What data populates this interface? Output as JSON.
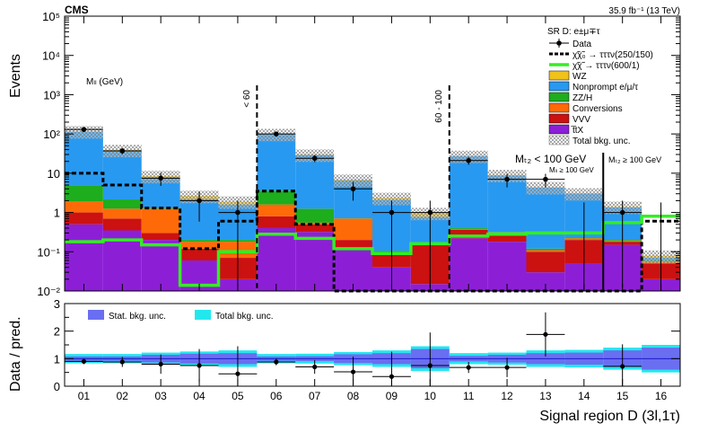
{
  "header": {
    "cms": "CMS",
    "lumi": "35.9 fb⁻¹ (13 TeV)"
  },
  "upper": {
    "ylabel": "Events",
    "tick_labels": [
      "10⁻²",
      "10⁻¹",
      "1",
      "10",
      "10²",
      "10³",
      "10⁴",
      "10⁵"
    ],
    "annotations": {
      "mll": "Mₗₗ (GeV)",
      "lt60": "< 60",
      "range60": "60 - 100",
      "mt2_low": "Mₜ₂ < 100 GeV",
      "mt2_low_sub": "Mₗₗ ≥ 100 GeV",
      "mt2_high": "Mₜ₂ ≥ 100 GeV"
    },
    "legend": {
      "title": "SR D: e±μ∓τ",
      "entries": [
        {
          "key": "data",
          "label": "Data"
        },
        {
          "key": "sig1",
          "label": "χ̃χ̃₀ → τττν(250/150)"
        },
        {
          "key": "sig2",
          "label": "χ̃χ̃ → τττν(600/1)"
        },
        {
          "key": "wz",
          "label": "WZ"
        },
        {
          "key": "np",
          "label": "Nonprompt e/μ/τ"
        },
        {
          "key": "zzh",
          "label": "ZZ/H"
        },
        {
          "key": "conv",
          "label": "Conversions"
        },
        {
          "key": "vvv",
          "label": "VVV"
        },
        {
          "key": "ttx",
          "label": "t̅tX"
        },
        {
          "key": "unc",
          "label": "Total bkg. unc."
        }
      ]
    }
  },
  "lower": {
    "ylabel": "Data / pred.",
    "tick_labels": [
      "0",
      "1",
      "2",
      "3"
    ],
    "legend": {
      "stat": "Stat. bkg. unc.",
      "total": "Total bkg. unc."
    }
  },
  "chart_data": {
    "type": "bar",
    "title": "CMS",
    "xlabel": "Signal region D (3l,1τ)",
    "ylabel": "Events",
    "yscale": "log",
    "ylim": [
      0.01,
      100000
    ],
    "categories": [
      "01",
      "02",
      "03",
      "04",
      "05",
      "06",
      "07",
      "08",
      "09",
      "10",
      "11",
      "12",
      "13",
      "14",
      "15",
      "16"
    ],
    "colors": {
      "ttx": "#8c1fd6",
      "vvv": "#cc1111",
      "conv": "#ff6a08",
      "zzh": "#1dad1d",
      "np": "#2899f0",
      "wz": "#f0c21c",
      "sig2": "#33ee22",
      "sig1": "#000000",
      "stat_band": "#6a6ef0",
      "total_band": "#22e8ee"
    },
    "series": [
      {
        "name": "t̅tX",
        "key": "ttx",
        "values": [
          0.5,
          0.35,
          0.2,
          0.06,
          0.02,
          0.4,
          0.32,
          0.11,
          0.04,
          0.015,
          0.22,
          0.18,
          0.03,
          0.05,
          0.15,
          0.02
        ]
      },
      {
        "name": "VVV",
        "key": "vvv",
        "values": [
          0.5,
          0.35,
          0.1,
          0.06,
          0.05,
          0.4,
          0.18,
          0.09,
          0.045,
          0.14,
          0.14,
          0.12,
          0.07,
          0.15,
          0.03,
          0.03
        ]
      },
      {
        "name": "Conversions",
        "key": "conv",
        "values": [
          0.9,
          0.55,
          0.95,
          0.06,
          0.11,
          0.8,
          0.05,
          0.5,
          0.01,
          0.01,
          0.02,
          0.01,
          0.01,
          0.02,
          0.01,
          0.005
        ]
      },
      {
        "name": "ZZ/H",
        "key": "zzh",
        "values": [
          3,
          0.9,
          0.05,
          0.02,
          0.02,
          2,
          0.7,
          0.01,
          0.01,
          0.01,
          0.02,
          0.01,
          0.01,
          0.01,
          0.01,
          0.005
        ]
      },
      {
        "name": "Nonprompt e/μ/τ",
        "key": "np",
        "values": [
          110,
          36,
          6.5,
          2.0,
          1.4,
          95,
          28,
          5.8,
          2.0,
          0.6,
          27,
          8.5,
          4.2,
          2.8,
          1.15,
          0.01
        ]
      },
      {
        "name": "WZ",
        "key": "wz",
        "values": [
          2,
          1,
          0.7,
          0.45,
          0.3,
          1.5,
          0.6,
          0.35,
          0.25,
          0.2,
          0.3,
          0.2,
          0.1,
          0.05,
          0.05,
          0.01
        ]
      }
    ],
    "total_bkg_unc_rel": 0.35,
    "signals": [
      {
        "name": "χ̃χ̃₀ → τττν(250/150)",
        "key": "sig1",
        "style": "dashed",
        "values": [
          10,
          5,
          1.3,
          0.12,
          0.6,
          3.5,
          0.5,
          0.01,
          0.01,
          0.01,
          0.01,
          0.01,
          0.01,
          0.01,
          0.01,
          0.6
        ]
      },
      {
        "name": "χ̃χ̃ → τττν(600/1)",
        "key": "sig2",
        "style": "solid",
        "values": [
          0.18,
          0.2,
          0.15,
          0.014,
          0.1,
          0.28,
          0.22,
          0.12,
          0.09,
          0.16,
          0.25,
          0.28,
          0.3,
          0.3,
          0.55,
          0.8
        ]
      }
    ],
    "data": [
      {
        "x": "01",
        "y": 130
      },
      {
        "x": "02",
        "y": 37
      },
      {
        "x": "03",
        "y": 7.5
      },
      {
        "x": "04",
        "y": 2
      },
      {
        "x": "05",
        "y": 1
      },
      {
        "x": "06",
        "y": 100
      },
      {
        "x": "07",
        "y": 24
      },
      {
        "x": "08",
        "y": 4
      },
      {
        "x": "09",
        "y": 1
      },
      {
        "x": "10",
        "y": 1
      },
      {
        "x": "11",
        "y": 21
      },
      {
        "x": "12",
        "y": 7
      },
      {
        "x": "13",
        "y": 7
      },
      {
        "x": "14",
        "y": 0
      },
      {
        "x": "15",
        "y": 1
      },
      {
        "x": "16",
        "y": 0
      }
    ],
    "ratio": {
      "ylabel": "Data / pred.",
      "ylim": [
        0,
        3
      ],
      "values": [
        0.9,
        0.88,
        0.8,
        0.75,
        0.45,
        0.88,
        0.7,
        0.52,
        0.35,
        0.75,
        0.68,
        0.68,
        1.88,
        null,
        0.72,
        null
      ],
      "errors": [
        0.1,
        0.18,
        0.35,
        0.6,
        1.0,
        0.12,
        0.25,
        0.55,
        0.9,
        1.2,
        0.2,
        0.35,
        0.8,
        null,
        0.8,
        null
      ],
      "stat_unc": [
        0.08,
        0.08,
        0.14,
        0.18,
        0.2,
        0.08,
        0.09,
        0.16,
        0.2,
        0.35,
        0.1,
        0.14,
        0.2,
        0.22,
        0.3,
        0.4
      ],
      "total_unc": [
        0.17,
        0.17,
        0.22,
        0.26,
        0.3,
        0.17,
        0.18,
        0.24,
        0.3,
        0.45,
        0.2,
        0.22,
        0.3,
        0.32,
        0.4,
        0.5
      ]
    },
    "separators": [
      {
        "after": "05",
        "label": "< 60"
      },
      {
        "after": "10",
        "label": "60 - 100"
      },
      {
        "after": "14",
        "label": "Mₜ₂ ≥ 100 GeV"
      }
    ]
  }
}
